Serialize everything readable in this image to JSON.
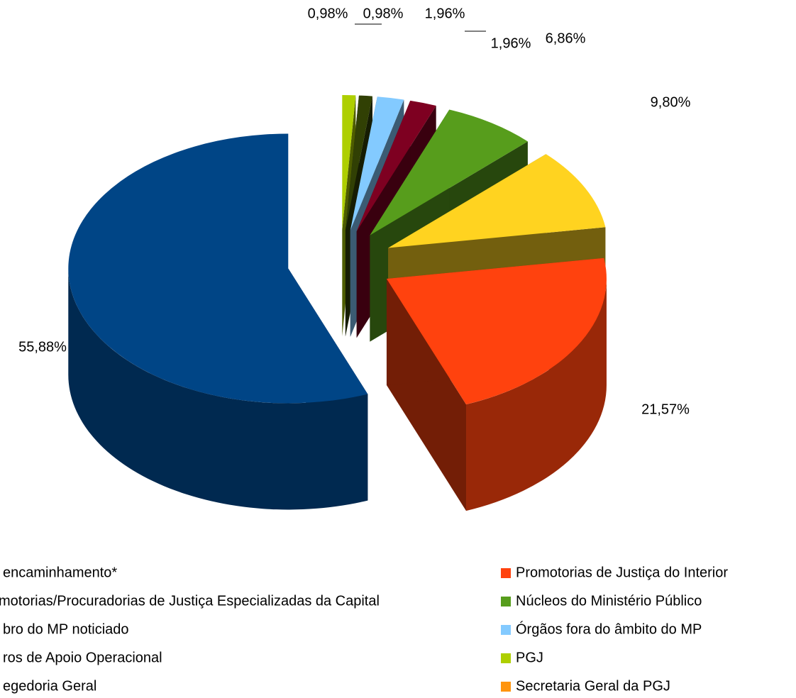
{
  "chart_data": {
    "type": "pie3d",
    "categories": [
      "encaminhamento*",
      "Promotorias de Justiça do Interior",
      "motorias/Procuradorias de Justiça Especializadas da Capital",
      "Núcleos do Ministério Público",
      "bro do MP noticiado",
      "Órgãos fora do âmbito do MP",
      "ros de Apoio Operacional",
      "PGJ",
      "egedoria Geral",
      "Secretaria Geral da PGJ"
    ],
    "values": [
      55.88,
      21.57,
      9.8,
      6.86,
      1.96,
      1.96,
      0.98,
      0.98,
      0,
      0
    ],
    "value_labels": [
      "55,88%",
      "21,57%",
      "9,80%",
      "6,86%",
      "1,96%",
      "1,96%",
      "0,98%",
      "0,98%",
      null,
      null
    ],
    "colors": [
      "#004586",
      "#ff420e",
      "#ffd320",
      "#579d1c",
      "#7e0021",
      "#83caff",
      "#314004",
      "#aecf00",
      "#4b1f6f",
      "#ff950e"
    ]
  }
}
